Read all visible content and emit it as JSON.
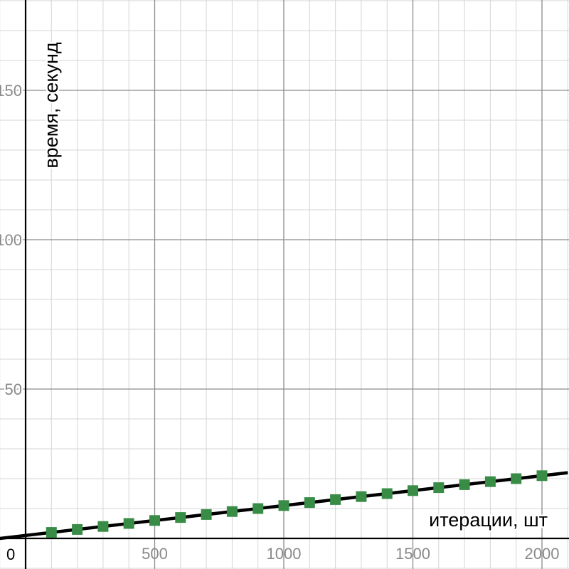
{
  "chart_data": {
    "type": "scatter",
    "title": "",
    "xlabel": "итерации, шт",
    "ylabel": "время, секунд",
    "xlim": [
      -100,
      2100
    ],
    "ylim": [
      -10,
      180
    ],
    "x_ticks": [
      500,
      1000,
      1500,
      2000
    ],
    "y_ticks": [
      50,
      100,
      150
    ],
    "origin_label": "0",
    "grid": true,
    "minor_grid_step_x": 100,
    "minor_grid_step_y": 10,
    "colors": {
      "marker": "#388c46",
      "trend_line": "#000000",
      "axis": "#000000",
      "major_grid": "#8c8c8c",
      "minor_grid": "#d6d6d6",
      "tick_label": "#8a8a8a"
    },
    "series": [
      {
        "values": [
          [
            100,
            2
          ],
          [
            200,
            3
          ],
          [
            300,
            4
          ],
          [
            400,
            5
          ],
          [
            500,
            6
          ],
          [
            600,
            7
          ],
          [
            700,
            8
          ],
          [
            800,
            9
          ],
          [
            900,
            10
          ],
          [
            1000,
            11
          ],
          [
            1100,
            12
          ],
          [
            1200,
            13
          ],
          [
            1300,
            14
          ],
          [
            1400,
            15
          ],
          [
            1500,
            16
          ],
          [
            1600,
            17
          ],
          [
            1700,
            18
          ],
          [
            1800,
            19
          ],
          [
            1900,
            20
          ],
          [
            2000,
            21
          ]
        ]
      }
    ],
    "trend_line": {
      "slope": 0.01,
      "intercept": 1
    }
  }
}
